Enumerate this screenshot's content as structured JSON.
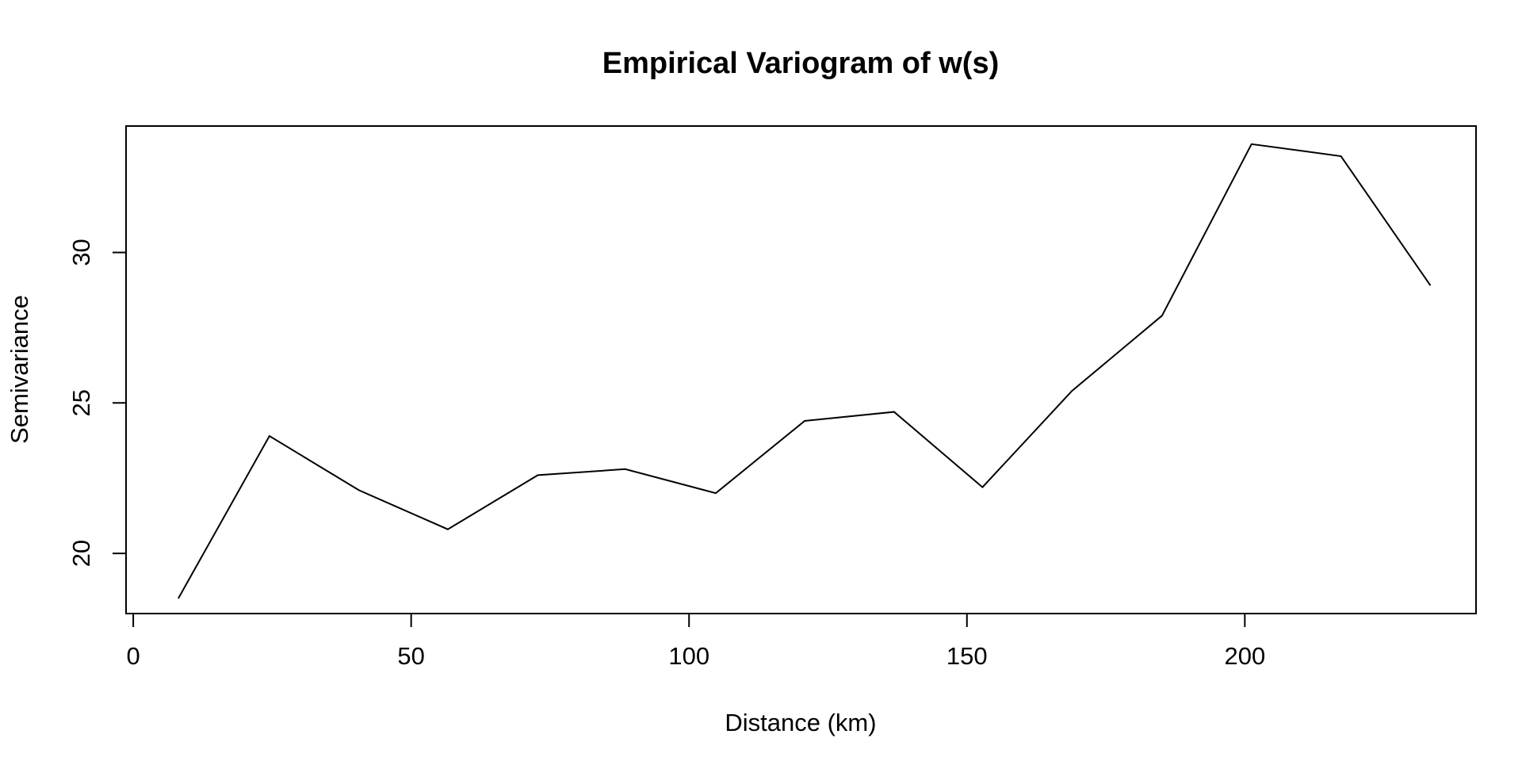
{
  "chart_data": {
    "type": "line",
    "title": "Empirical Variogram of w(s)",
    "xlabel": "Distance (km)",
    "ylabel": "Semivariance",
    "xlim": [
      -1.3,
      241.6
    ],
    "ylim": [
      18.0,
      34.2
    ],
    "x_ticks": [
      0,
      50,
      100,
      150,
      200
    ],
    "x_tick_labels": [
      "0",
      "50",
      "100",
      "150",
      "200"
    ],
    "y_ticks": [
      20,
      25,
      30
    ],
    "y_tick_labels": [
      "20",
      "25",
      "30"
    ],
    "grid": false,
    "legend": "none",
    "line_color": "#000000",
    "series": [
      {
        "x": [
          8.1,
          24.5,
          40.6,
          56.6,
          72.8,
          88.5,
          104.8,
          120.8,
          136.9,
          152.8,
          168.9,
          185.1,
          201.2,
          217.3,
          233.4
        ],
        "y": [
          18.5,
          23.9,
          22.1,
          20.8,
          22.6,
          22.8,
          22.0,
          24.4,
          24.7,
          22.2,
          25.4,
          27.9,
          33.6,
          33.2,
          28.9
        ]
      }
    ]
  }
}
